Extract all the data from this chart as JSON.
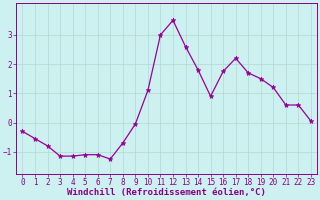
{
  "x": [
    0,
    1,
    2,
    3,
    4,
    5,
    6,
    7,
    8,
    9,
    10,
    11,
    12,
    13,
    14,
    15,
    16,
    17,
    18,
    19,
    20,
    21,
    22,
    23
  ],
  "y": [
    -0.3,
    -0.55,
    -0.8,
    -1.15,
    -1.15,
    -1.1,
    -1.1,
    -1.25,
    -0.7,
    -0.05,
    1.1,
    3.0,
    3.5,
    2.6,
    1.8,
    0.9,
    1.75,
    2.2,
    1.7,
    1.5,
    1.2,
    0.6,
    0.6,
    0.05
  ],
  "line_color": "#990099",
  "marker": "*",
  "marker_size": 3.5,
  "bg_color": "#cdf0f0",
  "grid_color": "#b0d8d0",
  "xlabel": "Windchill (Refroidissement éolien,°C)",
  "ylim": [
    -1.75,
    4.1
  ],
  "xlim": [
    -0.5,
    23.5
  ],
  "xticks": [
    0,
    1,
    2,
    3,
    4,
    5,
    6,
    7,
    8,
    9,
    10,
    11,
    12,
    13,
    14,
    15,
    16,
    17,
    18,
    19,
    20,
    21,
    22,
    23
  ],
  "yticks": [
    -1,
    0,
    1,
    2,
    3
  ],
  "tick_fontsize": 5.5,
  "xlabel_fontsize": 6.5,
  "label_color": "#880088",
  "tick_color": "#880088",
  "spine_color": "#880088",
  "linewidth": 0.9
}
